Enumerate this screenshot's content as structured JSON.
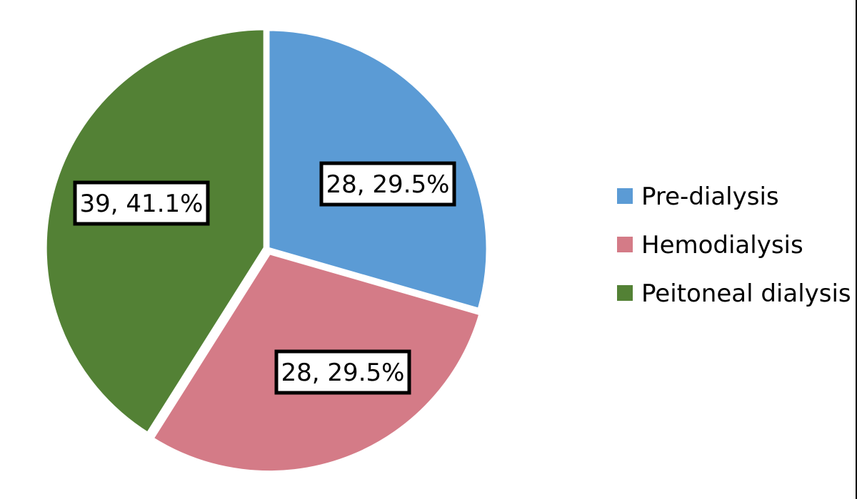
{
  "chart_data": {
    "type": "pie",
    "title": "",
    "slices": [
      {
        "name": "Pre-dialysis",
        "value": 28,
        "percent": "29.5%",
        "label": "28, 29.5%",
        "color": "#5b9bd5"
      },
      {
        "name": "Hemodialysis",
        "value": 28,
        "percent": "29.5%",
        "label": "28, 29.5%",
        "color": "#d47b87"
      },
      {
        "name": "Peitoneal dialysis",
        "value": 39,
        "percent": "41.1%",
        "label": "39, 41.1%",
        "color": "#538135"
      }
    ],
    "start_angle": "12 o'clock",
    "direction": "clockwise",
    "legend": {
      "position": "right",
      "entries": [
        "Pre-dialysis",
        "Hemodialysis",
        "Peitoneal dialysis"
      ]
    }
  }
}
